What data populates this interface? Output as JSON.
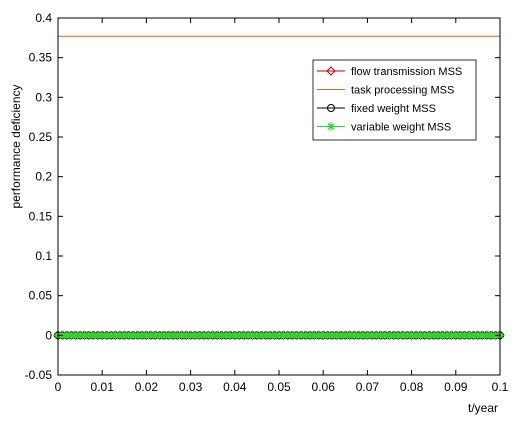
{
  "chart_data": {
    "type": "line",
    "title": "",
    "xlabel": "t/year",
    "ylabel": "performance deficiency",
    "xlim": [
      0,
      0.1
    ],
    "ylim": [
      -0.05,
      0.4
    ],
    "x_ticks": [
      0,
      0.01,
      0.02,
      0.03,
      0.04,
      0.05,
      0.06,
      0.07,
      0.08,
      0.09,
      0.1
    ],
    "x_tick_labels": [
      "0",
      "0.01",
      "0.02",
      "0.03",
      "0.04",
      "0.05",
      "0.06",
      "0.07",
      "0.08",
      "0.09",
      "0.1"
    ],
    "y_ticks": [
      -0.05,
      0,
      0.05,
      0.1,
      0.15,
      0.2,
      0.25,
      0.3,
      0.35,
      0.4
    ],
    "y_tick_labels": [
      "-0.05",
      "0",
      "0.05",
      "0.1",
      "0.15",
      "0.2",
      "0.25",
      "0.3",
      "0.35",
      "0.4"
    ],
    "grid": false,
    "legend_position": "top-right",
    "series": [
      {
        "name": "flow transmission MSS",
        "color": "#c00000",
        "marker": "diamond",
        "x": [
          0,
          0.1
        ],
        "y": [
          0,
          0
        ]
      },
      {
        "name": "task processing MSS",
        "color": "#d9661a",
        "marker": "none",
        "x": [
          0,
          0.1
        ],
        "y": [
          0.377,
          0.377
        ]
      },
      {
        "name": "fixed weight MSS",
        "color": "#000000",
        "marker": "circle",
        "x": [
          0,
          0.1
        ],
        "y": [
          0,
          0
        ]
      },
      {
        "name": "variable weight MSS",
        "color": "#22dd22",
        "marker": "asterisk",
        "x": [
          0,
          0.1
        ],
        "y": [
          0,
          0
        ]
      }
    ]
  }
}
